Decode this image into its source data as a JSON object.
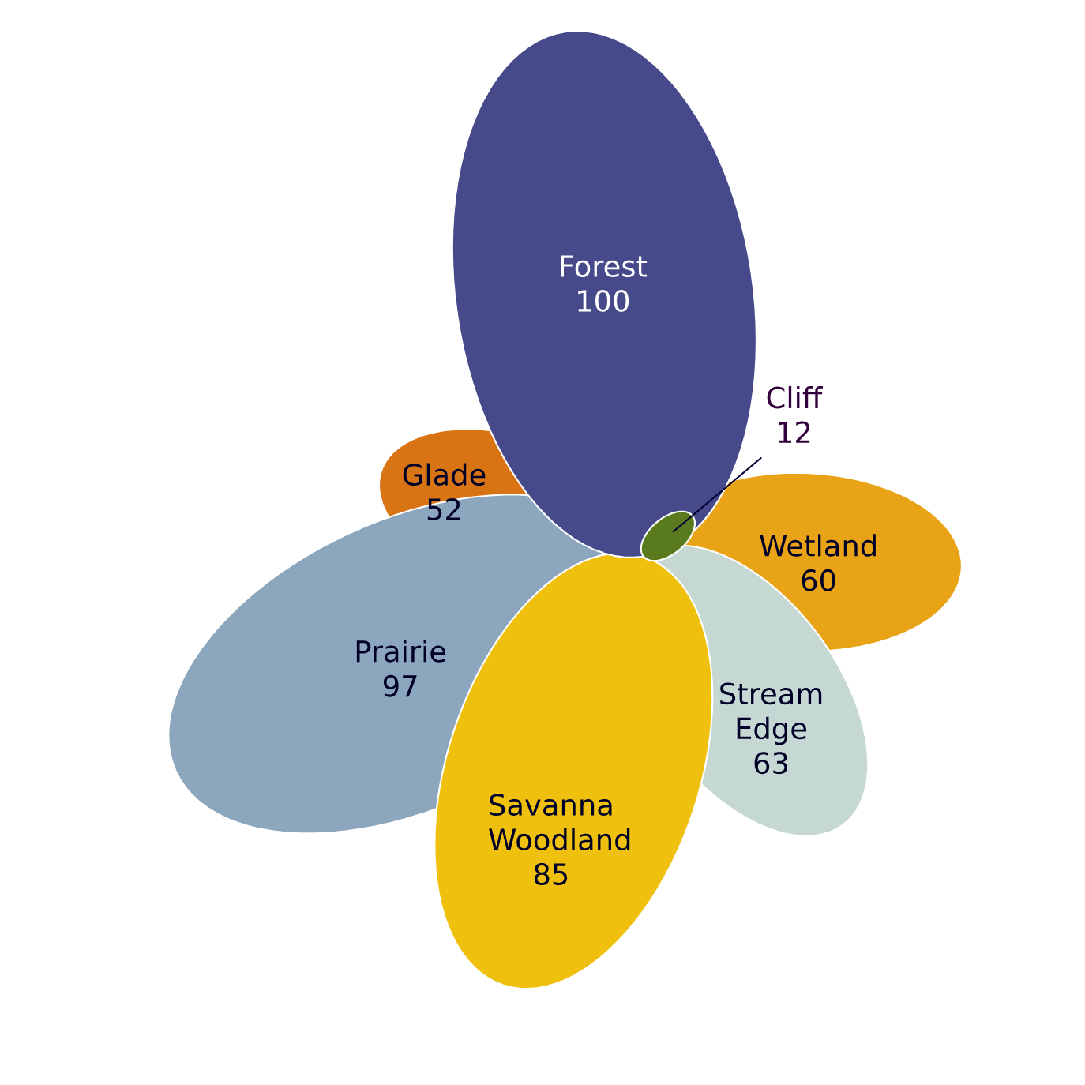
{
  "chart_data": {
    "type": "other",
    "categories": [
      "Forest",
      "Cliff",
      "Wetland",
      "Stream Edge",
      "Savanna Woodland",
      "Prairie",
      "Glade"
    ],
    "values": [
      100,
      12,
      60,
      63,
      85,
      97,
      52
    ],
    "colors": [
      "#474a8a",
      "#5a7a1e",
      "#e8a317",
      "#c5d8d4",
      "#efc10e",
      "#8ca6bd",
      "#d97414"
    ],
    "data_labels": true
  }
}
